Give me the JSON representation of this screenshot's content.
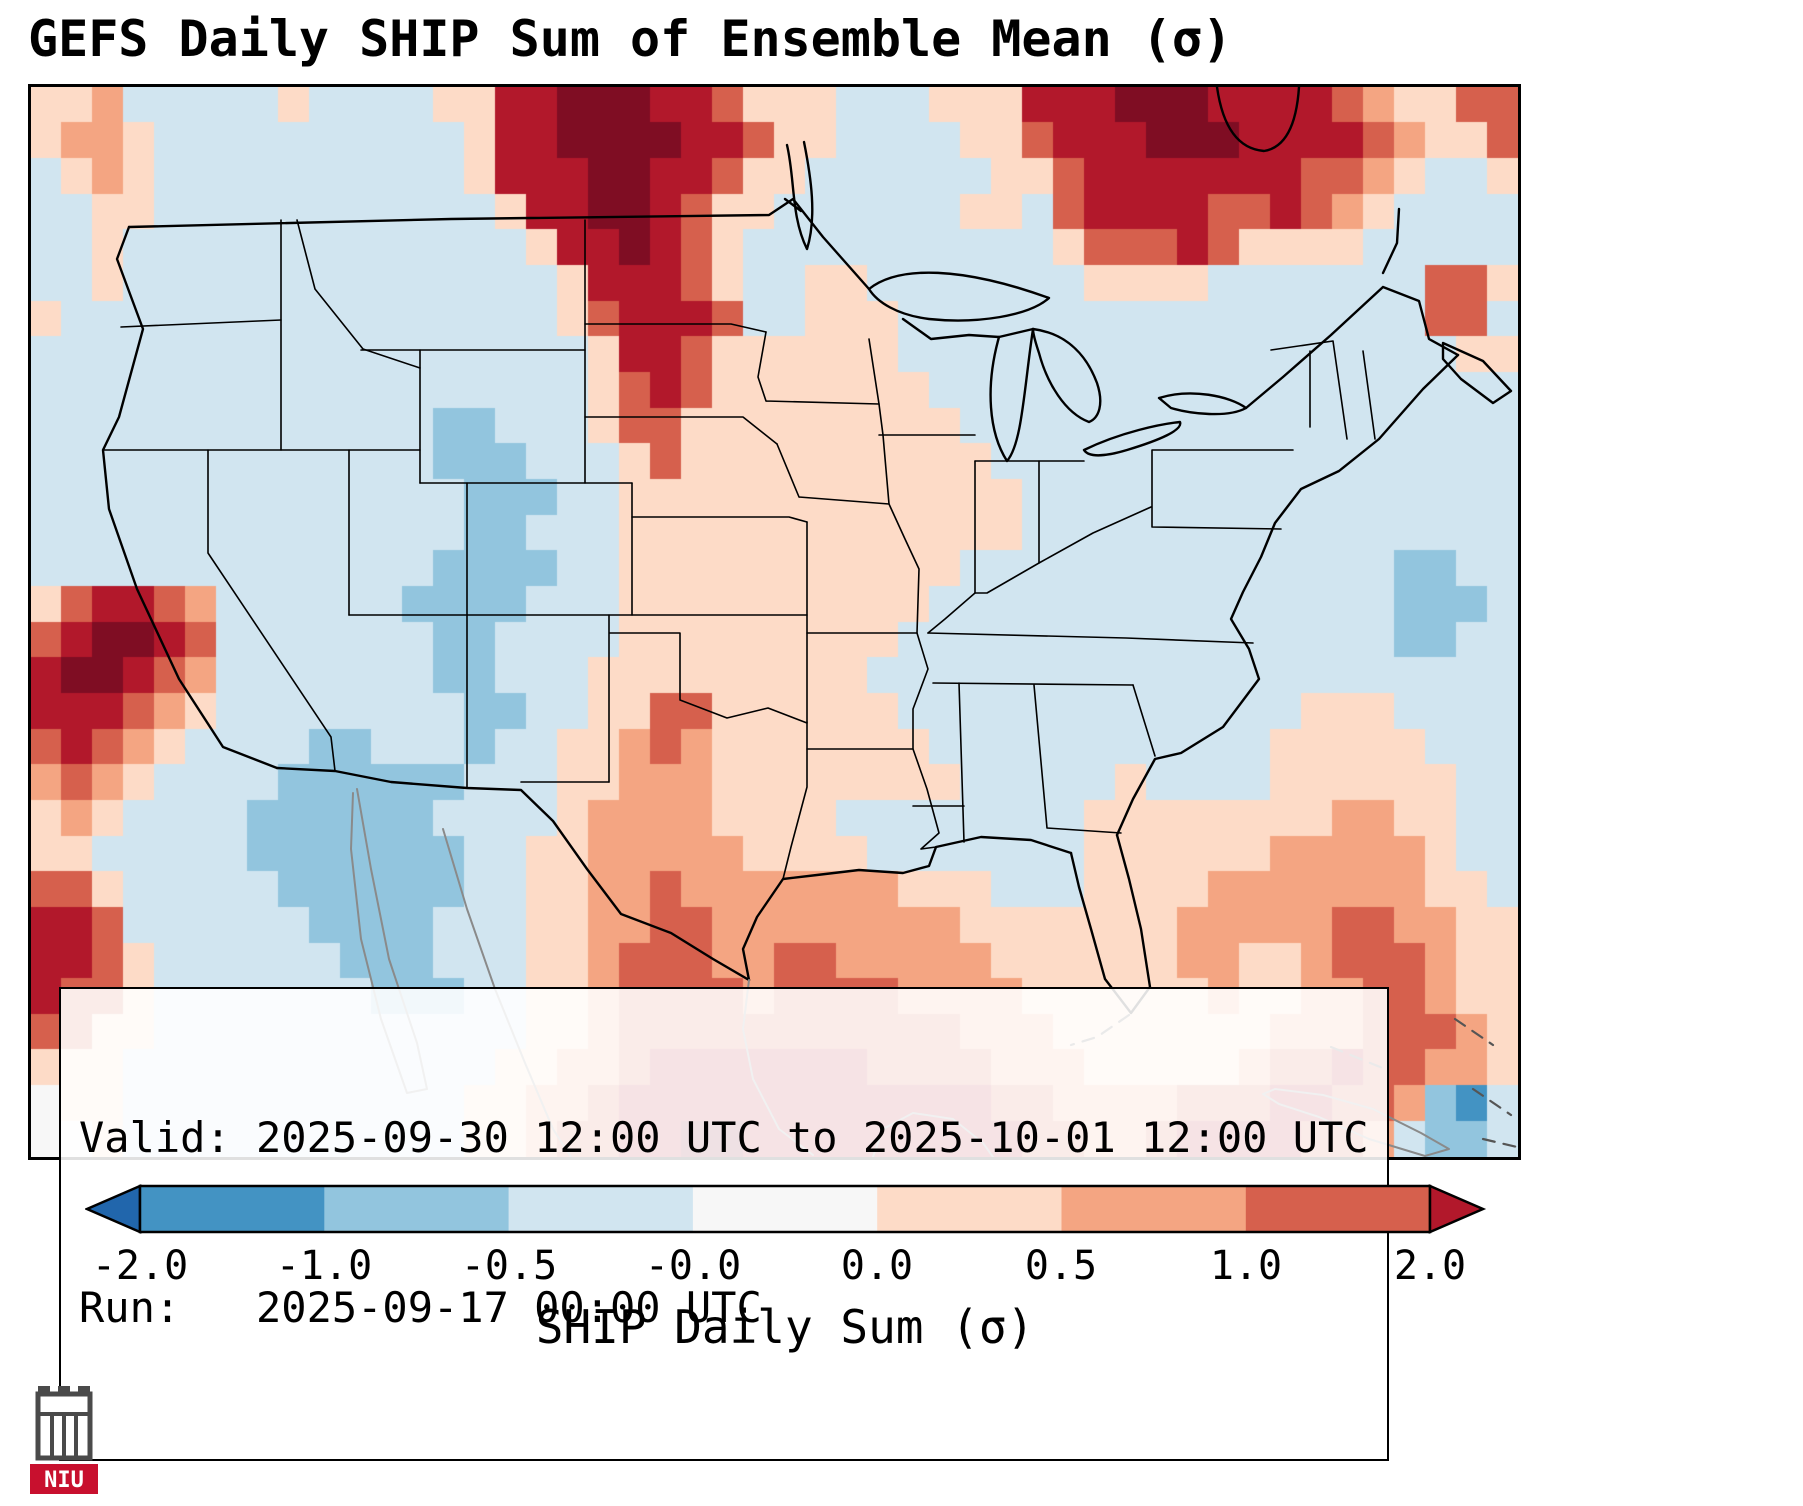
{
  "title": "GEFS Daily SHIP Sum of Ensemble Mean (σ)",
  "annotation_box": {
    "valid_line": "Valid: 2025-09-30 12:00 UTC to 2025-10-01 12:00 UTC",
    "run_line": "Run:   2025-09-17 00:00 UTC"
  },
  "colorbar": {
    "label": "SHIP Daily Sum (σ)",
    "tick_labels": [
      "-2.0",
      "-1.0",
      "-0.5",
      "-0.0",
      "0.0",
      "0.5",
      "1.0",
      "2.0"
    ],
    "segment_colors": [
      "#4393c3",
      "#92c5de",
      "#d1e5f0",
      "#f7f7f7",
      "#fddbc7",
      "#f4a582",
      "#d6604d"
    ],
    "under_color": "#2166ac",
    "over_color": "#b2182b"
  },
  "logo": {
    "text": "NIU"
  },
  "chart_data": {
    "type": "heatmap",
    "title": "GEFS Daily SHIP Sum of Ensemble Mean (σ)",
    "colorbar_label": "SHIP Daily Sum (σ)",
    "value_boundaries": [
      -2.0,
      -1.0,
      -0.5,
      -0.0,
      0.0,
      0.5,
      1.0,
      2.0
    ],
    "units": "sigma",
    "region": "CONUS and surroundings",
    "grid_rows": 30,
    "grid_cols": 48,
    "palette": {
      "B": "#2166ac",
      "b": "#4393c3",
      "l": "#92c5de",
      "c": "#d1e5f0",
      "w": "#f7f7f7",
      "p": "#fddbc7",
      "s": "#f4a582",
      "r": "#d6604d",
      "d": "#b2182b",
      "m": "#7f0d23"
    },
    "grid": [
      [
        "ppscccccpccc",
        "cppddmmmddrp",
        "ppcccpppdddm",
        "mmddddrspprr"
      ],
      [
        "psspcccccccc",
        "ccpddmmmmddr",
        "ppccccpprddd",
        "mmmddddrsppr"
      ],
      [
        "cpspcccccccc",
        "ccpdddmmddrp",
        "pccccccpprdd",
        "dddddrrspccp"
      ],
      [
        "ccppcccccccc",
        "cccpddmmdrpp",
        "ccccccppcrdd",
        "ddrrdrspcccc"
      ],
      [
        "ccpccccccccc",
        "ccccpddmdrpc",
        "cccccccccprr",
        "rdrppppccccc"
      ],
      [
        "ccpccccccccc",
        "cccccpdddrpc",
        "cppcccccccpp",
        "ppcccccccrrp"
      ],
      [
        "pccccccccccc",
        "cccccprdddrc",
        "cpppcccccccc",
        "cccccccccrrc"
      ],
      [
        "cccccccccccc",
        "ccccccpddrpp",
        "ppppcccccccc",
        "ccccccccccpp"
      ],
      [
        "cccccccccccc",
        "ccccccprdrpp",
        "pppppccccccc",
        "cccccccccccc"
      ],
      [
        "cccccccccccc",
        "cllcccprrppp",
        "ppppppcccccc",
        "cccccccccccc"
      ],
      [
        "cccccccccccc",
        "clllcccprppp",
        "pppppppccccc",
        "cccccccccccc"
      ],
      [
        "cccccccccccc",
        "cclllccppppp",
        "ppppppppcccc",
        "cccccccccccc"
      ],
      [
        "cccccccccccc",
        "ccllcccppppp",
        "ppppppppcccc",
        "cccccccccccc"
      ],
      [
        "cccccccccccc",
        "cllllccppppp",
        "ppppppcccccc",
        "ccccccccllcc"
      ],
      [
        "prddrscccccc",
        "llllcccppppp",
        "pppppccccccc",
        "cccccccclllc"
      ],
      [
        "rdmmdrcccccc",
        "cllccccppppp",
        "ppppcccccccc",
        "ccccccccllcc"
      ],
      [
        "dmmdrscccccc",
        "cllcccpppppp",
        "pppccccccccc",
        "cccccccccccc"
      ],
      [
        "dddrspcccccc",
        "ccllccpprrpp",
        "ppppcccccccc",
        "cccccpppcccc"
      ],
      [
        "rdrspccccllc",
        "cclccppsrspp",
        "pppppccccccc",
        "ccccpppppccc"
      ],
      [
        "srspccccllll",
        "llcccppssspp",
        "ppppppcccccp",
        "ccccppppppcc"
      ],
      [
        "pspcccclllll",
        "lccccpsssspp",
        "ppccccccccpp",
        "ppppppssppcc"
      ],
      [
        "ppccccclllll",
        "llccppsssssp",
        "pppcccccccpp",
        "ppppssssspcc"
      ],
      [
        "rrpcccccllll",
        "llccppssrsss",
        "sssspppcccpp",
        "ppsssssssppc"
      ],
      [
        "ddrcccccclll",
        "lcccppssrrss",
        "sssssspppppp",
        "psssssrrsspp"
      ],
      [
        "ddrpccccccll",
        "lcccppsrrrss",
        "rrsssssppppp",
        "pssppsrrrspp"
      ],
      [
        "drrpcccccccl",
        "llccppsrrrrs",
        "rrrrsssspppp",
        "ppsppssrrspp"
      ],
      [
        "rrppcccccccc",
        "ccccppsrrrrr",
        "rrrrrrsssppp",
        "ppppsssrrrsp"
      ],
      [
        "pppccccccccc",
        "cccppssrdddd",
        "dddrrrrssspp",
        "pppsrrdrrssp"
      ],
      [
        "wppccccccccc",
        "ccppssrddddd",
        "dddddddrrsss",
        "srrrddrrslbc"
      ],
      [
        "wwpccccccccc",
        "ccppsrrddmmd",
        "ddddddddrrss",
        "rddddrrscllc"
      ]
    ]
  }
}
